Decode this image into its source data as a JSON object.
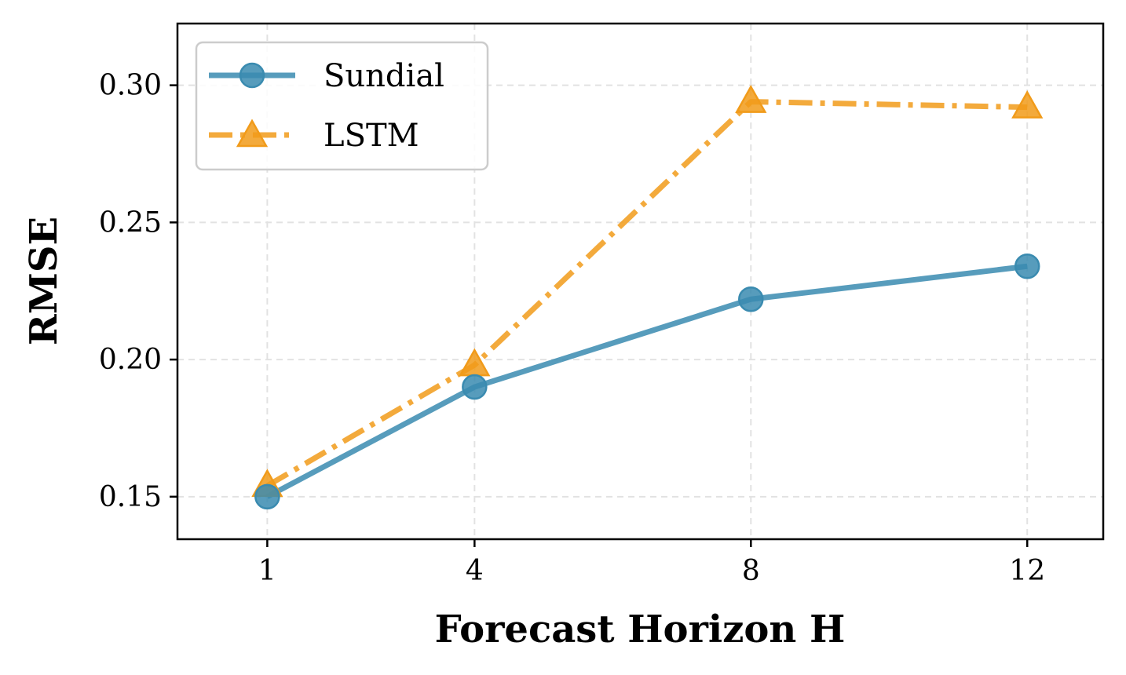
{
  "chart_data": {
    "type": "line",
    "title": "",
    "xlabel": "Forecast Horizon H",
    "ylabel": "RMSE",
    "x": [
      1,
      4,
      8,
      12
    ],
    "xticks": [
      "1",
      "4",
      "8",
      "12"
    ],
    "xlim": [
      -0.3,
      13.1
    ],
    "ylim": [
      0.1345,
      0.3225
    ],
    "yticks": [
      0.15,
      0.2,
      0.25,
      0.3
    ],
    "ytick_labels": [
      "0.15",
      "0.20",
      "0.25",
      "0.30"
    ],
    "grid": true,
    "legend_position": "top-left",
    "series": [
      {
        "name": "Sundial",
        "values": [
          0.15,
          0.19,
          0.222,
          0.234
        ],
        "color": "#3a8bb0",
        "marker": "circle",
        "linestyle": "solid"
      },
      {
        "name": "LSTM",
        "values": [
          0.154,
          0.198,
          0.294,
          0.292
        ],
        "color": "#f19b1a",
        "marker": "triangle",
        "linestyle": "dashdot"
      }
    ]
  }
}
